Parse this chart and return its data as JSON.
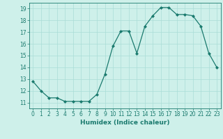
{
  "x": [
    0,
    1,
    2,
    3,
    4,
    5,
    6,
    7,
    8,
    9,
    10,
    11,
    12,
    13,
    14,
    15,
    16,
    17,
    18,
    19,
    20,
    21,
    22,
    23
  ],
  "y": [
    12.8,
    12.0,
    11.4,
    11.4,
    11.1,
    11.1,
    11.1,
    11.1,
    11.7,
    13.4,
    15.8,
    17.1,
    17.1,
    15.2,
    17.5,
    18.4,
    19.1,
    19.1,
    18.5,
    18.5,
    18.4,
    17.5,
    15.2,
    14.0
  ],
  "line_color": "#1a7a6e",
  "marker": "D",
  "marker_size": 2.0,
  "bg_color": "#cef0ea",
  "grid_color": "#aaddd6",
  "axis_color": "#1a7a6e",
  "xlabel": "Humidex (Indice chaleur)",
  "xlim": [
    -0.5,
    23.5
  ],
  "ylim": [
    10.5,
    19.5
  ],
  "yticks": [
    11,
    12,
    13,
    14,
    15,
    16,
    17,
    18,
    19
  ],
  "xticks": [
    0,
    1,
    2,
    3,
    4,
    5,
    6,
    7,
    8,
    9,
    10,
    11,
    12,
    13,
    14,
    15,
    16,
    17,
    18,
    19,
    20,
    21,
    22,
    23
  ],
  "tick_color": "#1a7a6e",
  "label_fontsize": 6.5,
  "tick_fontsize": 5.5,
  "linewidth": 0.9
}
